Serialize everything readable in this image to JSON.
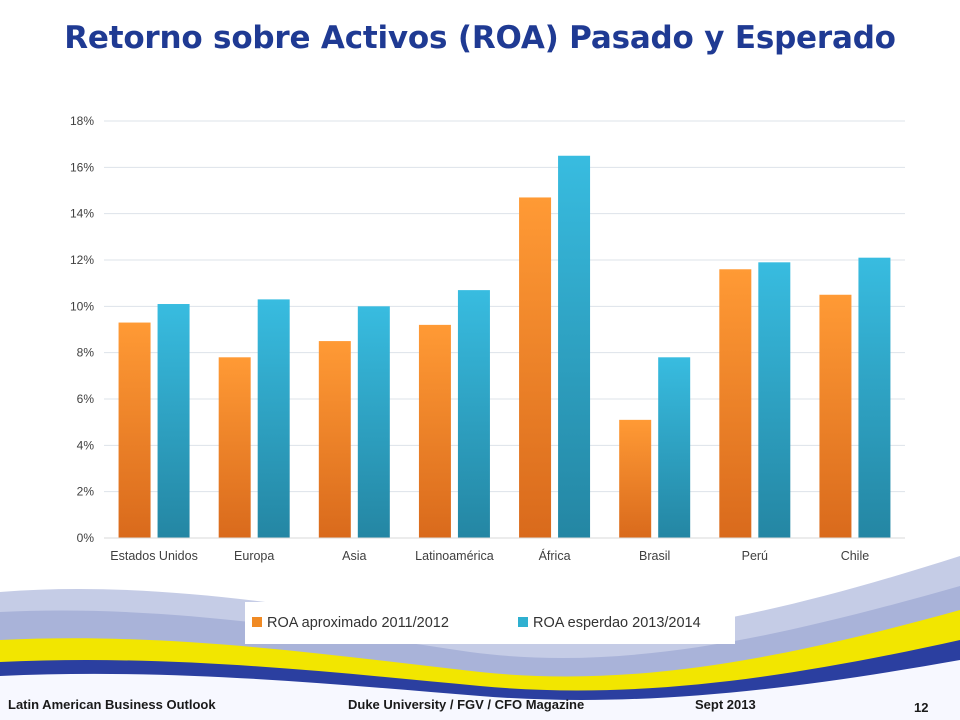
{
  "slide": {
    "title": "Retorno sobre Activos (ROA) Pasado y Esperado",
    "footer_left": "Latin American Business Outlook",
    "footer_center": "Duke University / FGV / CFO Magazine",
    "footer_right": "Sept 2013",
    "page_number": "12"
  },
  "chart_data": {
    "type": "bar",
    "title": "",
    "xlabel": "",
    "ylabel": "",
    "categories": [
      "Estados Unidos",
      "Europa",
      "Asia",
      "Latinoamérica",
      "África",
      "Brasil",
      "Perú",
      "Chile"
    ],
    "series": [
      {
        "name": "ROA aproximado 2011/2012",
        "values": [
          9.3,
          7.8,
          8.5,
          9.2,
          14.7,
          5.1,
          11.6,
          10.5
        ],
        "color": "#f08a24"
      },
      {
        "name": "ROA esperdao 2013/2014",
        "values": [
          10.1,
          10.3,
          10.0,
          10.7,
          16.5,
          7.8,
          11.9,
          12.1
        ],
        "color": "#2fb0d0"
      }
    ],
    "ylim": [
      0,
      18
    ],
    "y_ticks": [
      "0%",
      "2%",
      "4%",
      "6%",
      "8%",
      "10%",
      "12%",
      "14%",
      "16%",
      "18%"
    ],
    "y_tick_values": [
      0,
      2,
      4,
      6,
      8,
      10,
      12,
      14,
      16,
      18
    ],
    "grid": true,
    "legend_position": "bottom"
  }
}
